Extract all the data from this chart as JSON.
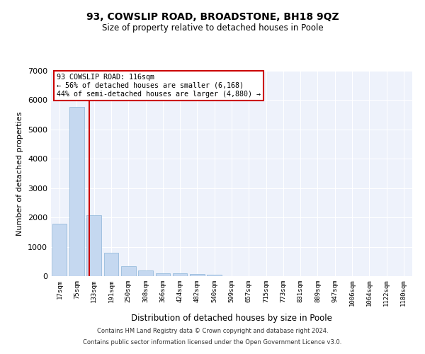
{
  "title": "93, COWSLIP ROAD, BROADSTONE, BH18 9QZ",
  "subtitle": "Size of property relative to detached houses in Poole",
  "xlabel": "Distribution of detached houses by size in Poole",
  "ylabel": "Number of detached properties",
  "bar_color": "#c5d8f0",
  "bar_edge_color": "#8ab4d8",
  "vline_color": "#cc0000",
  "categories": [
    "17sqm",
    "75sqm",
    "133sqm",
    "191sqm",
    "250sqm",
    "308sqm",
    "366sqm",
    "424sqm",
    "482sqm",
    "540sqm",
    "599sqm",
    "657sqm",
    "715sqm",
    "773sqm",
    "831sqm",
    "889sqm",
    "947sqm",
    "1006sqm",
    "1064sqm",
    "1122sqm",
    "1180sqm"
  ],
  "values": [
    1780,
    5780,
    2080,
    800,
    340,
    185,
    105,
    95,
    80,
    60,
    0,
    0,
    0,
    0,
    0,
    0,
    0,
    0,
    0,
    0,
    0
  ],
  "ylim": [
    0,
    7000
  ],
  "yticks": [
    0,
    1000,
    2000,
    3000,
    4000,
    5000,
    6000,
    7000
  ],
  "vline_pos": 1.72,
  "annotation_text": "93 COWSLIP ROAD: 116sqm\n← 56% of detached houses are smaller (6,168)\n44% of semi-detached houses are larger (4,880) →",
  "footer_line1": "Contains HM Land Registry data © Crown copyright and database right 2024.",
  "footer_line2": "Contains public sector information licensed under the Open Government Licence v3.0.",
  "background_color": "#eef2fb",
  "grid_color": "#ffffff",
  "fig_bg_color": "#ffffff"
}
